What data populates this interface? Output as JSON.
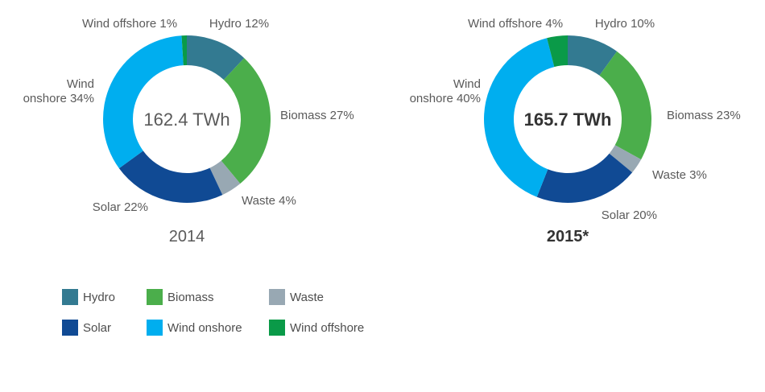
{
  "legend": {
    "items": [
      {
        "label": "Hydro",
        "color": "#337a91"
      },
      {
        "label": "Biomass",
        "color": "#4bae4b"
      },
      {
        "label": "Waste",
        "color": "#98a8b3"
      },
      {
        "label": "Solar",
        "color": "#104a94"
      },
      {
        "label": "Wind onshore",
        "color": "#00aeef"
      },
      {
        "label": "Wind offshore",
        "color": "#0a9a48"
      }
    ]
  },
  "chart_data": [
    {
      "type": "pie",
      "variant": "donut",
      "title": "2014",
      "center_label": "162.4 TWh",
      "emphasis": false,
      "slices": [
        {
          "name": "Hydro",
          "value": 12,
          "label_lines": [
            "Hydro 12%"
          ],
          "color": "#337a91"
        },
        {
          "name": "Biomass",
          "value": 27,
          "label_lines": [
            "Biomass 27%"
          ],
          "color": "#4bae4b"
        },
        {
          "name": "Waste",
          "value": 4,
          "label_lines": [
            "Waste 4%"
          ],
          "color": "#98a8b3"
        },
        {
          "name": "Solar",
          "value": 22,
          "label_lines": [
            "Solar 22%"
          ],
          "color": "#104a94"
        },
        {
          "name": "Wind onshore",
          "value": 34,
          "label_lines": [
            "Wind",
            "onshore 34%"
          ],
          "color": "#00aeef"
        },
        {
          "name": "Wind offshore",
          "value": 1,
          "label_lines": [
            "Wind offshore 1%"
          ],
          "color": "#0a9a48"
        }
      ]
    },
    {
      "type": "pie",
      "variant": "donut",
      "title": "2015*",
      "center_label": "165.7 TWh",
      "emphasis": true,
      "slices": [
        {
          "name": "Hydro",
          "value": 10,
          "label_lines": [
            "Hydro 10%"
          ],
          "color": "#337a91"
        },
        {
          "name": "Biomass",
          "value": 23,
          "label_lines": [
            "Biomass 23%"
          ],
          "color": "#4bae4b"
        },
        {
          "name": "Waste",
          "value": 3,
          "label_lines": [
            "Waste 3%"
          ],
          "color": "#98a8b3"
        },
        {
          "name": "Solar",
          "value": 20,
          "label_lines": [
            "Solar 20%"
          ],
          "color": "#104a94"
        },
        {
          "name": "Wind onshore",
          "value": 40,
          "label_lines": [
            "Wind",
            "onshore 40%"
          ],
          "color": "#00aeef"
        },
        {
          "name": "Wind offshore",
          "value": 4,
          "label_lines": [
            "Wind offshore 4%"
          ],
          "color": "#0a9a48"
        }
      ]
    }
  ]
}
